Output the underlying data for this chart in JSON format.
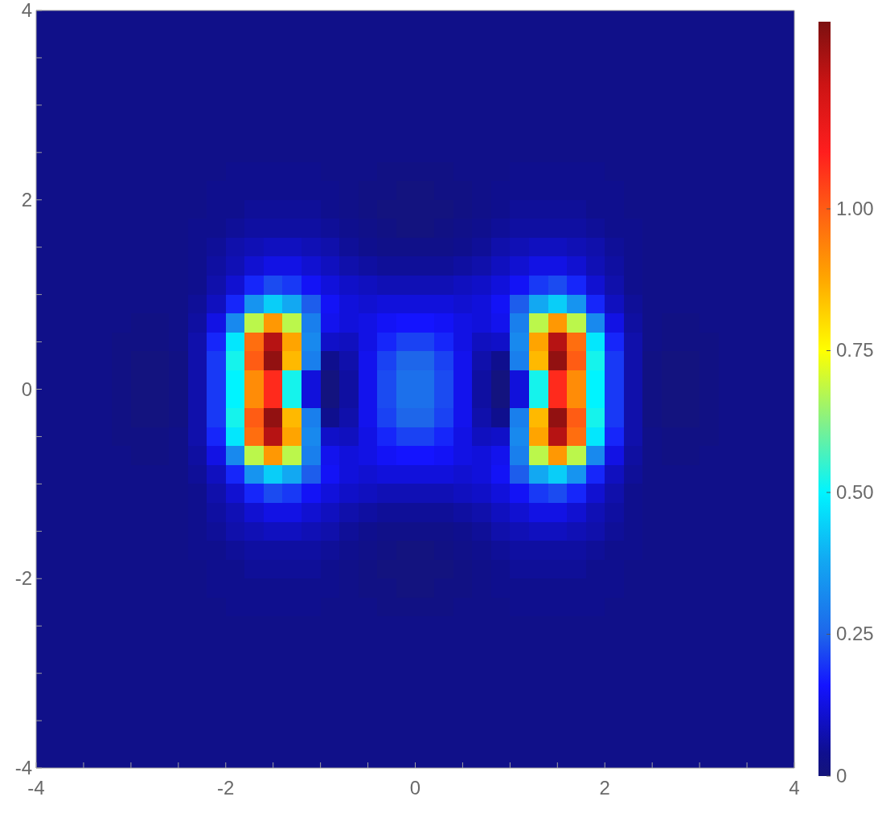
{
  "chart_data": {
    "type": "heatmap",
    "xlim": [
      -4,
      4
    ],
    "ylim": [
      -4,
      4
    ],
    "xticks": [
      -4,
      {
        "value": -3.5,
        "label": null
      },
      {
        "value": -3,
        "label": null
      },
      {
        "value": -2.5,
        "label": null
      },
      -2,
      {
        "value": -1.5,
        "label": null
      },
      {
        "value": -1,
        "label": null
      },
      {
        "value": -0.5,
        "label": null
      },
      0,
      {
        "value": 0.5,
        "label": null
      },
      {
        "value": 1,
        "label": null
      },
      {
        "value": 1.5,
        "label": null
      },
      2,
      {
        "value": 2.5,
        "label": null
      },
      {
        "value": 3,
        "label": null
      },
      {
        "value": 3.5,
        "label": null
      },
      4
    ],
    "yticks": [
      -4,
      {
        "value": -3.5,
        "label": null
      },
      {
        "value": -3,
        "label": null
      },
      {
        "value": -2.5,
        "label": null
      },
      -2,
      {
        "value": -1.5,
        "label": null
      },
      {
        "value": -1,
        "label": null
      },
      {
        "value": -0.5,
        "label": null
      },
      0,
      {
        "value": 0.5,
        "label": null
      },
      {
        "value": 1,
        "label": null
      },
      {
        "value": 1.5,
        "label": null
      },
      2,
      {
        "value": 2.5,
        "label": null
      },
      {
        "value": 3,
        "label": null
      },
      {
        "value": 3.5,
        "label": null
      },
      4
    ],
    "clim": [
      0,
      1.33
    ],
    "cticks": [
      0,
      0.25,
      {
        "value": 0.5,
        "label": "0.50"
      },
      0.75,
      {
        "value": 1,
        "label": "1.00"
      }
    ],
    "cells": [
      [
        0.03,
        0.03,
        0.03,
        0.03,
        0.03,
        0.03,
        0.03,
        0.03,
        0.03,
        0.03,
        0.03,
        0.03,
        0.03,
        0.03,
        0.03,
        0.03,
        0.03,
        0.03,
        0.03,
        0.03,
        0.03,
        0.03,
        0.03,
        0.03,
        0.03,
        0.03,
        0.03,
        0.03,
        0.03,
        0.03,
        0.03,
        0.03,
        0.03,
        0.03,
        0.03,
        0.03,
        0.03,
        0.03,
        0.03,
        0.03
      ],
      [
        0.03,
        0.03,
        0.03,
        0.03,
        0.03,
        0.03,
        0.03,
        0.03,
        0.03,
        0.03,
        0.03,
        0.03,
        0.03,
        0.03,
        0.03,
        0.03,
        0.03,
        0.03,
        0.03,
        0.03,
        0.03,
        0.03,
        0.03,
        0.03,
        0.03,
        0.03,
        0.03,
        0.03,
        0.03,
        0.03,
        0.03,
        0.03,
        0.03,
        0.03,
        0.03,
        0.03,
        0.03,
        0.03,
        0.03,
        0.03
      ],
      [
        0.03,
        0.03,
        0.03,
        0.03,
        0.03,
        0.03,
        0.03,
        0.03,
        0.03,
        0.03,
        0.03,
        0.03,
        0.03,
        0.03,
        0.03,
        0.03,
        0.03,
        0.03,
        0.03,
        0.03,
        0.03,
        0.03,
        0.03,
        0.03,
        0.03,
        0.03,
        0.03,
        0.03,
        0.03,
        0.03,
        0.03,
        0.03,
        0.03,
        0.03,
        0.03,
        0.03,
        0.03,
        0.03,
        0.03,
        0.03
      ],
      [
        0.03,
        0.03,
        0.03,
        0.03,
        0.03,
        0.03,
        0.03,
        0.03,
        0.03,
        0.03,
        0.03,
        0.03,
        0.03,
        0.03,
        0.03,
        0.03,
        0.03,
        0.03,
        0.03,
        0.03,
        0.03,
        0.03,
        0.03,
        0.03,
        0.03,
        0.03,
        0.03,
        0.03,
        0.03,
        0.03,
        0.03,
        0.03,
        0.03,
        0.03,
        0.03,
        0.03,
        0.03,
        0.03,
        0.03,
        0.03
      ],
      [
        0.03,
        0.03,
        0.03,
        0.03,
        0.03,
        0.03,
        0.03,
        0.03,
        0.03,
        0.03,
        0.03,
        0.03,
        0.03,
        0.03,
        0.03,
        0.03,
        0.03,
        0.03,
        0.03,
        0.03,
        0.03,
        0.03,
        0.03,
        0.03,
        0.03,
        0.03,
        0.03,
        0.03,
        0.03,
        0.03,
        0.03,
        0.03,
        0.03,
        0.03,
        0.03,
        0.03,
        0.03,
        0.03,
        0.03,
        0.03
      ],
      [
        0.03,
        0.03,
        0.03,
        0.03,
        0.03,
        0.03,
        0.03,
        0.03,
        0.03,
        0.03,
        0.03,
        0.03,
        0.03,
        0.03,
        0.03,
        0.03,
        0.03,
        0.03,
        0.03,
        0.03,
        0.03,
        0.03,
        0.03,
        0.03,
        0.03,
        0.03,
        0.03,
        0.03,
        0.03,
        0.03,
        0.03,
        0.03,
        0.03,
        0.03,
        0.03,
        0.03,
        0.03,
        0.03,
        0.03,
        0.03
      ],
      [
        0.03,
        0.03,
        0.03,
        0.03,
        0.03,
        0.03,
        0.03,
        0.03,
        0.03,
        0.03,
        0.03,
        0.03,
        0.03,
        0.03,
        0.03,
        0.03,
        0.03,
        0.03,
        0.03,
        0.03,
        0.03,
        0.03,
        0.03,
        0.03,
        0.03,
        0.03,
        0.03,
        0.03,
        0.03,
        0.03,
        0.03,
        0.03,
        0.03,
        0.03,
        0.03,
        0.03,
        0.03,
        0.03,
        0.03,
        0.03
      ],
      [
        0.03,
        0.03,
        0.03,
        0.03,
        0.03,
        0.03,
        0.03,
        0.03,
        0.03,
        0.03,
        0.03,
        0.03,
        0.03,
        0.03,
        0.03,
        0.03,
        0.03,
        0.03,
        0.03,
        0.03,
        0.03,
        0.03,
        0.03,
        0.03,
        0.03,
        0.03,
        0.03,
        0.03,
        0.03,
        0.03,
        0.03,
        0.03,
        0.03,
        0.03,
        0.03,
        0.03,
        0.03,
        0.03,
        0.03,
        0.03
      ],
      [
        0.03,
        0.03,
        0.03,
        0.03,
        0.03,
        0.03,
        0.03,
        0.03,
        0.03,
        0.03,
        0.04,
        0.04,
        0.04,
        0.04,
        0.04,
        0.03,
        0.03,
        0.03,
        0.02,
        0.02,
        0.02,
        0.02,
        0.03,
        0.03,
        0.03,
        0.04,
        0.04,
        0.04,
        0.04,
        0.04,
        0.03,
        0.03,
        0.03,
        0.03,
        0.03,
        0.03,
        0.03,
        0.03,
        0.03,
        0.03
      ],
      [
        0.03,
        0.03,
        0.03,
        0.03,
        0.03,
        0.03,
        0.03,
        0.03,
        0.03,
        0.04,
        0.04,
        0.04,
        0.04,
        0.04,
        0.04,
        0.04,
        0.03,
        0.02,
        0.02,
        0.01,
        0.01,
        0.02,
        0.02,
        0.03,
        0.04,
        0.04,
        0.04,
        0.04,
        0.04,
        0.04,
        0.04,
        0.03,
        0.03,
        0.03,
        0.03,
        0.03,
        0.03,
        0.03,
        0.03,
        0.03
      ],
      [
        0.03,
        0.03,
        0.03,
        0.03,
        0.03,
        0.03,
        0.03,
        0.03,
        0.03,
        0.04,
        0.04,
        0.05,
        0.05,
        0.05,
        0.05,
        0.04,
        0.03,
        0.02,
        0.01,
        0.01,
        0.01,
        0.01,
        0.02,
        0.03,
        0.04,
        0.05,
        0.05,
        0.05,
        0.05,
        0.04,
        0.04,
        0.03,
        0.03,
        0.03,
        0.03,
        0.03,
        0.03,
        0.03,
        0.03,
        0.03
      ],
      [
        0.03,
        0.03,
        0.03,
        0.03,
        0.03,
        0.03,
        0.03,
        0.03,
        0.04,
        0.04,
        0.05,
        0.06,
        0.06,
        0.06,
        0.06,
        0.05,
        0.04,
        0.03,
        0.02,
        0.01,
        0.01,
        0.02,
        0.03,
        0.04,
        0.05,
        0.06,
        0.06,
        0.06,
        0.06,
        0.05,
        0.04,
        0.04,
        0.03,
        0.03,
        0.03,
        0.03,
        0.03,
        0.03,
        0.03,
        0.03
      ],
      [
        0.03,
        0.03,
        0.03,
        0.03,
        0.03,
        0.03,
        0.03,
        0.03,
        0.04,
        0.05,
        0.07,
        0.08,
        0.09,
        0.09,
        0.08,
        0.07,
        0.05,
        0.04,
        0.03,
        0.03,
        0.03,
        0.03,
        0.04,
        0.05,
        0.07,
        0.08,
        0.09,
        0.09,
        0.08,
        0.07,
        0.05,
        0.04,
        0.03,
        0.03,
        0.03,
        0.03,
        0.03,
        0.03,
        0.03,
        0.03
      ],
      [
        0.03,
        0.03,
        0.03,
        0.03,
        0.03,
        0.03,
        0.03,
        0.03,
        0.04,
        0.06,
        0.08,
        0.11,
        0.13,
        0.13,
        0.11,
        0.09,
        0.07,
        0.06,
        0.05,
        0.05,
        0.05,
        0.05,
        0.06,
        0.07,
        0.09,
        0.11,
        0.13,
        0.13,
        0.11,
        0.08,
        0.06,
        0.04,
        0.03,
        0.03,
        0.03,
        0.03,
        0.03,
        0.03,
        0.03,
        0.03
      ],
      [
        0.03,
        0.03,
        0.03,
        0.03,
        0.03,
        0.03,
        0.03,
        0.03,
        0.04,
        0.07,
        0.11,
        0.18,
        0.22,
        0.2,
        0.15,
        0.12,
        0.1,
        0.09,
        0.08,
        0.08,
        0.08,
        0.08,
        0.09,
        0.1,
        0.12,
        0.15,
        0.2,
        0.22,
        0.18,
        0.11,
        0.07,
        0.04,
        0.03,
        0.03,
        0.03,
        0.03,
        0.03,
        0.03,
        0.03,
        0.03
      ],
      [
        0.03,
        0.03,
        0.03,
        0.03,
        0.03,
        0.03,
        0.03,
        0.03,
        0.05,
        0.09,
        0.18,
        0.34,
        0.44,
        0.38,
        0.24,
        0.15,
        0.12,
        0.11,
        0.12,
        0.12,
        0.12,
        0.12,
        0.11,
        0.12,
        0.15,
        0.24,
        0.38,
        0.44,
        0.34,
        0.18,
        0.09,
        0.05,
        0.03,
        0.03,
        0.03,
        0.03,
        0.03,
        0.03,
        0.03,
        0.03
      ],
      [
        0.03,
        0.03,
        0.03,
        0.03,
        0.03,
        0.02,
        0.02,
        0.03,
        0.06,
        0.13,
        0.32,
        0.68,
        0.9,
        0.68,
        0.3,
        0.14,
        0.12,
        0.13,
        0.15,
        0.16,
        0.16,
        0.15,
        0.13,
        0.12,
        0.14,
        0.3,
        0.68,
        0.9,
        0.68,
        0.32,
        0.13,
        0.06,
        0.03,
        0.02,
        0.02,
        0.03,
        0.03,
        0.03,
        0.03,
        0.03
      ],
      [
        0.03,
        0.03,
        0.03,
        0.03,
        0.02,
        0.02,
        0.02,
        0.03,
        0.07,
        0.18,
        0.48,
        0.97,
        1.25,
        0.88,
        0.32,
        0.1,
        0.09,
        0.13,
        0.18,
        0.21,
        0.21,
        0.18,
        0.13,
        0.09,
        0.1,
        0.32,
        0.88,
        1.25,
        0.97,
        0.48,
        0.18,
        0.07,
        0.03,
        0.02,
        0.02,
        0.02,
        0.03,
        0.03,
        0.03,
        0.03
      ],
      [
        0.03,
        0.03,
        0.03,
        0.03,
        0.02,
        0.01,
        0.01,
        0.02,
        0.07,
        0.2,
        0.52,
        1,
        1.3,
        0.85,
        0.3,
        0.04,
        0.07,
        0.14,
        0.21,
        0.25,
        0.25,
        0.21,
        0.14,
        0.07,
        0.04,
        0.3,
        0.85,
        1.3,
        1,
        0.52,
        0.2,
        0.07,
        0.02,
        0.01,
        0.01,
        0.02,
        0.03,
        0.03,
        0.03,
        0.03
      ],
      [
        0.03,
        0.03,
        0.03,
        0.03,
        0.02,
        0.01,
        0.01,
        0.02,
        0.07,
        0.2,
        0.5,
        0.92,
        1.08,
        0.52,
        0.12,
        0.01,
        0.06,
        0.14,
        0.22,
        0.27,
        0.27,
        0.22,
        0.14,
        0.06,
        0.01,
        0.12,
        0.52,
        1.08,
        0.92,
        0.5,
        0.2,
        0.07,
        0.02,
        0.01,
        0.01,
        0.02,
        0.03,
        0.03,
        0.03,
        0.03
      ],
      [
        0.03,
        0.03,
        0.03,
        0.03,
        0.02,
        0.01,
        0.01,
        0.02,
        0.07,
        0.2,
        0.5,
        0.92,
        1.08,
        0.52,
        0.12,
        0.01,
        0.06,
        0.14,
        0.22,
        0.27,
        0.27,
        0.22,
        0.14,
        0.06,
        0.01,
        0.12,
        0.52,
        1.08,
        0.92,
        0.5,
        0.2,
        0.07,
        0.02,
        0.01,
        0.01,
        0.02,
        0.03,
        0.03,
        0.03,
        0.03
      ],
      [
        0.03,
        0.03,
        0.03,
        0.03,
        0.02,
        0.01,
        0.01,
        0.02,
        0.07,
        0.2,
        0.52,
        1,
        1.3,
        0.85,
        0.3,
        0.04,
        0.07,
        0.14,
        0.21,
        0.25,
        0.25,
        0.21,
        0.14,
        0.07,
        0.04,
        0.3,
        0.85,
        1.3,
        1,
        0.52,
        0.2,
        0.07,
        0.02,
        0.01,
        0.01,
        0.02,
        0.03,
        0.03,
        0.03,
        0.03
      ],
      [
        0.03,
        0.03,
        0.03,
        0.03,
        0.02,
        0.02,
        0.02,
        0.03,
        0.07,
        0.18,
        0.48,
        0.97,
        1.25,
        0.88,
        0.32,
        0.1,
        0.09,
        0.13,
        0.18,
        0.21,
        0.21,
        0.18,
        0.13,
        0.09,
        0.1,
        0.32,
        0.88,
        1.25,
        0.97,
        0.48,
        0.18,
        0.07,
        0.03,
        0.02,
        0.02,
        0.02,
        0.03,
        0.03,
        0.03,
        0.03
      ],
      [
        0.03,
        0.03,
        0.03,
        0.03,
        0.03,
        0.02,
        0.02,
        0.03,
        0.06,
        0.13,
        0.32,
        0.68,
        0.9,
        0.68,
        0.3,
        0.14,
        0.12,
        0.13,
        0.15,
        0.16,
        0.16,
        0.15,
        0.13,
        0.12,
        0.14,
        0.3,
        0.68,
        0.9,
        0.68,
        0.32,
        0.13,
        0.06,
        0.03,
        0.02,
        0.02,
        0.03,
        0.03,
        0.03,
        0.03,
        0.03
      ],
      [
        0.03,
        0.03,
        0.03,
        0.03,
        0.03,
        0.03,
        0.03,
        0.03,
        0.05,
        0.09,
        0.18,
        0.34,
        0.44,
        0.38,
        0.24,
        0.15,
        0.12,
        0.11,
        0.12,
        0.12,
        0.12,
        0.12,
        0.11,
        0.12,
        0.15,
        0.24,
        0.38,
        0.44,
        0.34,
        0.18,
        0.09,
        0.05,
        0.03,
        0.03,
        0.03,
        0.03,
        0.03,
        0.03,
        0.03,
        0.03
      ],
      [
        0.03,
        0.03,
        0.03,
        0.03,
        0.03,
        0.03,
        0.03,
        0.03,
        0.04,
        0.07,
        0.11,
        0.18,
        0.22,
        0.2,
        0.15,
        0.12,
        0.1,
        0.09,
        0.08,
        0.08,
        0.08,
        0.08,
        0.09,
        0.1,
        0.12,
        0.15,
        0.2,
        0.22,
        0.18,
        0.11,
        0.07,
        0.04,
        0.03,
        0.03,
        0.03,
        0.03,
        0.03,
        0.03,
        0.03,
        0.03
      ],
      [
        0.03,
        0.03,
        0.03,
        0.03,
        0.03,
        0.03,
        0.03,
        0.03,
        0.04,
        0.06,
        0.08,
        0.11,
        0.13,
        0.13,
        0.11,
        0.09,
        0.07,
        0.06,
        0.05,
        0.05,
        0.05,
        0.05,
        0.06,
        0.07,
        0.09,
        0.11,
        0.13,
        0.13,
        0.11,
        0.08,
        0.06,
        0.04,
        0.03,
        0.03,
        0.03,
        0.03,
        0.03,
        0.03,
        0.03,
        0.03
      ],
      [
        0.03,
        0.03,
        0.03,
        0.03,
        0.03,
        0.03,
        0.03,
        0.03,
        0.04,
        0.05,
        0.07,
        0.08,
        0.09,
        0.09,
        0.08,
        0.07,
        0.05,
        0.04,
        0.03,
        0.03,
        0.03,
        0.03,
        0.04,
        0.05,
        0.07,
        0.08,
        0.09,
        0.09,
        0.08,
        0.07,
        0.05,
        0.04,
        0.03,
        0.03,
        0.03,
        0.03,
        0.03,
        0.03,
        0.03,
        0.03
      ],
      [
        0.03,
        0.03,
        0.03,
        0.03,
        0.03,
        0.03,
        0.03,
        0.03,
        0.04,
        0.04,
        0.05,
        0.06,
        0.06,
        0.06,
        0.06,
        0.05,
        0.04,
        0.03,
        0.02,
        0.01,
        0.01,
        0.02,
        0.03,
        0.04,
        0.05,
        0.06,
        0.06,
        0.06,
        0.06,
        0.05,
        0.04,
        0.04,
        0.03,
        0.03,
        0.03,
        0.03,
        0.03,
        0.03,
        0.03,
        0.03
      ],
      [
        0.03,
        0.03,
        0.03,
        0.03,
        0.03,
        0.03,
        0.03,
        0.03,
        0.03,
        0.04,
        0.04,
        0.05,
        0.05,
        0.05,
        0.05,
        0.04,
        0.03,
        0.02,
        0.01,
        0.01,
        0.01,
        0.01,
        0.02,
        0.03,
        0.04,
        0.05,
        0.05,
        0.05,
        0.05,
        0.04,
        0.04,
        0.03,
        0.03,
        0.03,
        0.03,
        0.03,
        0.03,
        0.03,
        0.03,
        0.03
      ],
      [
        0.03,
        0.03,
        0.03,
        0.03,
        0.03,
        0.03,
        0.03,
        0.03,
        0.03,
        0.04,
        0.04,
        0.04,
        0.04,
        0.04,
        0.04,
        0.04,
        0.03,
        0.02,
        0.02,
        0.01,
        0.01,
        0.02,
        0.02,
        0.03,
        0.04,
        0.04,
        0.04,
        0.04,
        0.04,
        0.04,
        0.04,
        0.03,
        0.03,
        0.03,
        0.03,
        0.03,
        0.03,
        0.03,
        0.03,
        0.03
      ],
      [
        0.03,
        0.03,
        0.03,
        0.03,
        0.03,
        0.03,
        0.03,
        0.03,
        0.03,
        0.03,
        0.04,
        0.04,
        0.04,
        0.04,
        0.04,
        0.03,
        0.03,
        0.03,
        0.02,
        0.02,
        0.02,
        0.02,
        0.03,
        0.03,
        0.03,
        0.04,
        0.04,
        0.04,
        0.04,
        0.04,
        0.03,
        0.03,
        0.03,
        0.03,
        0.03,
        0.03,
        0.03,
        0.03,
        0.03,
        0.03
      ],
      [
        0.03,
        0.03,
        0.03,
        0.03,
        0.03,
        0.03,
        0.03,
        0.03,
        0.03,
        0.03,
        0.03,
        0.03,
        0.03,
        0.03,
        0.03,
        0.03,
        0.03,
        0.03,
        0.03,
        0.03,
        0.03,
        0.03,
        0.03,
        0.03,
        0.03,
        0.03,
        0.03,
        0.03,
        0.03,
        0.03,
        0.03,
        0.03,
        0.03,
        0.03,
        0.03,
        0.03,
        0.03,
        0.03,
        0.03,
        0.03
      ],
      [
        0.03,
        0.03,
        0.03,
        0.03,
        0.03,
        0.03,
        0.03,
        0.03,
        0.03,
        0.03,
        0.03,
        0.03,
        0.03,
        0.03,
        0.03,
        0.03,
        0.03,
        0.03,
        0.03,
        0.03,
        0.03,
        0.03,
        0.03,
        0.03,
        0.03,
        0.03,
        0.03,
        0.03,
        0.03,
        0.03,
        0.03,
        0.03,
        0.03,
        0.03,
        0.03,
        0.03,
        0.03,
        0.03,
        0.03,
        0.03
      ],
      [
        0.03,
        0.03,
        0.03,
        0.03,
        0.03,
        0.03,
        0.03,
        0.03,
        0.03,
        0.03,
        0.03,
        0.03,
        0.03,
        0.03,
        0.03,
        0.03,
        0.03,
        0.03,
        0.03,
        0.03,
        0.03,
        0.03,
        0.03,
        0.03,
        0.03,
        0.03,
        0.03,
        0.03,
        0.03,
        0.03,
        0.03,
        0.03,
        0.03,
        0.03,
        0.03,
        0.03,
        0.03,
        0.03,
        0.03,
        0.03
      ],
      [
        0.03,
        0.03,
        0.03,
        0.03,
        0.03,
        0.03,
        0.03,
        0.03,
        0.03,
        0.03,
        0.03,
        0.03,
        0.03,
        0.03,
        0.03,
        0.03,
        0.03,
        0.03,
        0.03,
        0.03,
        0.03,
        0.03,
        0.03,
        0.03,
        0.03,
        0.03,
        0.03,
        0.03,
        0.03,
        0.03,
        0.03,
        0.03,
        0.03,
        0.03,
        0.03,
        0.03,
        0.03,
        0.03,
        0.03,
        0.03
      ],
      [
        0.03,
        0.03,
        0.03,
        0.03,
        0.03,
        0.03,
        0.03,
        0.03,
        0.03,
        0.03,
        0.03,
        0.03,
        0.03,
        0.03,
        0.03,
        0.03,
        0.03,
        0.03,
        0.03,
        0.03,
        0.03,
        0.03,
        0.03,
        0.03,
        0.03,
        0.03,
        0.03,
        0.03,
        0.03,
        0.03,
        0.03,
        0.03,
        0.03,
        0.03,
        0.03,
        0.03,
        0.03,
        0.03,
        0.03,
        0.03
      ],
      [
        0.03,
        0.03,
        0.03,
        0.03,
        0.03,
        0.03,
        0.03,
        0.03,
        0.03,
        0.03,
        0.03,
        0.03,
        0.03,
        0.03,
        0.03,
        0.03,
        0.03,
        0.03,
        0.03,
        0.03,
        0.03,
        0.03,
        0.03,
        0.03,
        0.03,
        0.03,
        0.03,
        0.03,
        0.03,
        0.03,
        0.03,
        0.03,
        0.03,
        0.03,
        0.03,
        0.03,
        0.03,
        0.03,
        0.03,
        0.03
      ],
      [
        0.03,
        0.03,
        0.03,
        0.03,
        0.03,
        0.03,
        0.03,
        0.03,
        0.03,
        0.03,
        0.03,
        0.03,
        0.03,
        0.03,
        0.03,
        0.03,
        0.03,
        0.03,
        0.03,
        0.03,
        0.03,
        0.03,
        0.03,
        0.03,
        0.03,
        0.03,
        0.03,
        0.03,
        0.03,
        0.03,
        0.03,
        0.03,
        0.03,
        0.03,
        0.03,
        0.03,
        0.03,
        0.03,
        0.03,
        0.03
      ],
      [
        0.03,
        0.03,
        0.03,
        0.03,
        0.03,
        0.03,
        0.03,
        0.03,
        0.03,
        0.03,
        0.03,
        0.03,
        0.03,
        0.03,
        0.03,
        0.03,
        0.03,
        0.03,
        0.03,
        0.03,
        0.03,
        0.03,
        0.03,
        0.03,
        0.03,
        0.03,
        0.03,
        0.03,
        0.03,
        0.03,
        0.03,
        0.03,
        0.03,
        0.03,
        0.03,
        0.03,
        0.03,
        0.03,
        0.03,
        0.03
      ]
    ]
  }
}
